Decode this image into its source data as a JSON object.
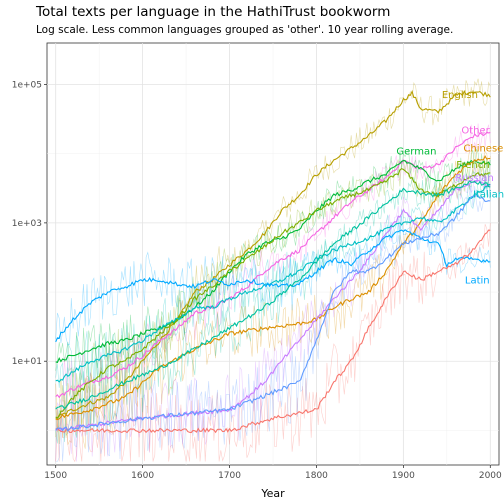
{
  "chart_data": {
    "type": "line",
    "title": "Total texts per language in the HathiTrust bookworm",
    "subtitle": "Log scale. Less common languages grouped as 'other'. 10 year rolling average.",
    "xlabel": "Year",
    "ylabel": "",
    "xlim": [
      1490,
      2010
    ],
    "ylim_log10": [
      -0.5,
      5.6
    ],
    "x_ticks": [
      1500,
      1600,
      1700,
      1800,
      1900,
      2000
    ],
    "y_ticks": [
      {
        "value": 10,
        "label": "1e+01"
      },
      {
        "value": 1000,
        "label": "1e+03"
      },
      {
        "value": 100000,
        "label": "1e+05"
      }
    ],
    "grid": true,
    "series": [
      {
        "name": "English",
        "color": "#b79f00",
        "label_at": [
          1965,
          72000
        ],
        "x": [
          1500,
          1520,
          1540,
          1560,
          1580,
          1600,
          1620,
          1640,
          1660,
          1680,
          1700,
          1720,
          1740,
          1760,
          1780,
          1800,
          1820,
          1840,
          1860,
          1880,
          1900,
          1910,
          1920,
          1940,
          1960,
          1980,
          2000
        ],
        "y": [
          1.5,
          2,
          2.5,
          3,
          5,
          10,
          20,
          40,
          100,
          150,
          250,
          400,
          700,
          1500,
          2500,
          5000,
          8000,
          12000,
          18000,
          30000,
          60000,
          75000,
          45000,
          40000,
          70000,
          80000,
          70000
        ]
      },
      {
        "name": "Other",
        "color": "#f564e3",
        "label_at": [
          1983,
          22000
        ],
        "x": [
          1500,
          1520,
          1540,
          1560,
          1580,
          1600,
          1620,
          1640,
          1660,
          1680,
          1700,
          1720,
          1740,
          1760,
          1780,
          1800,
          1820,
          1840,
          1860,
          1880,
          1900,
          1920,
          1940,
          1960,
          1980,
          2000
        ],
        "y": [
          3,
          4,
          5,
          6,
          8,
          12,
          20,
          30,
          50,
          60,
          80,
          120,
          200,
          300,
          400,
          700,
          1200,
          2000,
          3000,
          4500,
          8000,
          6000,
          7000,
          12000,
          18000,
          20000
        ]
      },
      {
        "name": "German",
        "color": "#00ba38",
        "label_at": [
          1915,
          11000
        ],
        "x": [
          1500,
          1520,
          1540,
          1560,
          1580,
          1600,
          1620,
          1640,
          1660,
          1680,
          1700,
          1720,
          1740,
          1760,
          1780,
          1800,
          1820,
          1840,
          1860,
          1880,
          1900,
          1920,
          1940,
          1960,
          1980,
          2000
        ],
        "y": [
          10,
          12,
          15,
          18,
          20,
          25,
          30,
          40,
          60,
          100,
          200,
          350,
          500,
          600,
          800,
          1500,
          2500,
          3000,
          4000,
          5000,
          8000,
          6000,
          4000,
          6000,
          8000,
          7000
        ]
      },
      {
        "name": "Chinese",
        "color": "#db8e00",
        "label_at": [
          1992,
          12000
        ],
        "x": [
          1500,
          1540,
          1580,
          1620,
          1660,
          1700,
          1740,
          1780,
          1800,
          1820,
          1840,
          1860,
          1880,
          1900,
          1920,
          1940,
          1960,
          1980,
          2000
        ],
        "y": [
          1.5,
          2,
          3,
          8,
          15,
          25,
          30,
          35,
          40,
          60,
          80,
          100,
          200,
          500,
          1000,
          2500,
          5000,
          8000,
          9000
        ]
      },
      {
        "name": "French",
        "color": "#7cae00",
        "label_at": [
          1980,
          7000
        ],
        "x": [
          1500,
          1520,
          1540,
          1560,
          1580,
          1600,
          1620,
          1640,
          1660,
          1680,
          1700,
          1720,
          1740,
          1760,
          1780,
          1800,
          1820,
          1840,
          1860,
          1880,
          1900,
          1920,
          1940,
          1960,
          1980,
          2000
        ],
        "y": [
          1.5,
          3,
          5,
          8,
          10,
          15,
          25,
          40,
          80,
          120,
          200,
          300,
          450,
          700,
          1000,
          1500,
          2000,
          2500,
          3000,
          4000,
          6000,
          3000,
          2500,
          3500,
          5000,
          5000
        ]
      },
      {
        "name": "Russian",
        "color": "#c77cff",
        "label_at": [
          1982,
          4500
        ],
        "x": [
          1500,
          1600,
          1700,
          1720,
          1740,
          1760,
          1780,
          1800,
          1820,
          1840,
          1860,
          1880,
          1900,
          1920,
          1940,
          1960,
          1980,
          2000
        ],
        "y": [
          1,
          1.5,
          2,
          3,
          5,
          10,
          20,
          40,
          80,
          150,
          300,
          700,
          1500,
          800,
          1500,
          3000,
          4000,
          3500
        ]
      },
      {
        "name": "Italian",
        "color": "#00bfc4",
        "label_at": [
          1998,
          2600
        ],
        "x": [
          1500,
          1520,
          1540,
          1560,
          1580,
          1600,
          1620,
          1640,
          1660,
          1680,
          1700,
          1720,
          1740,
          1760,
          1780,
          1800,
          1820,
          1840,
          1860,
          1880,
          1900,
          1920,
          1940,
          1960,
          1980,
          2000
        ],
        "y": [
          5,
          7,
          10,
          12,
          15,
          20,
          30,
          40,
          60,
          60,
          80,
          100,
          120,
          150,
          200,
          300,
          400,
          500,
          600,
          800,
          1000,
          1200,
          1000,
          1500,
          2500,
          3500
        ]
      },
      {
        "name": "Latin",
        "color": "#00a9ff",
        "label_at": [
          1985,
          150
        ],
        "x": [
          1500,
          1520,
          1540,
          1560,
          1580,
          1600,
          1620,
          1640,
          1660,
          1680,
          1700,
          1720,
          1740,
          1760,
          1780,
          1800,
          1820,
          1840,
          1860,
          1880,
          1900,
          1920,
          1940,
          1950,
          1960,
          1980,
          2000
        ],
        "y": [
          20,
          40,
          70,
          100,
          120,
          150,
          150,
          130,
          120,
          150,
          130,
          150,
          130,
          120,
          130,
          200,
          300,
          250,
          400,
          600,
          800,
          600,
          500,
          250,
          300,
          300,
          280
        ]
      },
      {
        "name": "",
        "color": "#f8766d",
        "x": [
          1500,
          1600,
          1700,
          1750,
          1800,
          1820,
          1840,
          1860,
          1880,
          1900,
          1920,
          1940,
          1960,
          1980,
          2000
        ],
        "y": [
          1,
          1,
          1,
          1.5,
          2,
          5,
          10,
          30,
          80,
          200,
          150,
          200,
          250,
          400,
          800
        ]
      },
      {
        "name": "",
        "color": "#619cff",
        "x": [
          1500,
          1600,
          1700,
          1780,
          1800,
          1820,
          1840,
          1860,
          1880,
          1900,
          1920,
          1940,
          1960,
          1980,
          2000
        ],
        "y": [
          1,
          1.5,
          2,
          5,
          20,
          100,
          200,
          200,
          300,
          500,
          600,
          700,
          1200,
          2500,
          2000
        ]
      },
      {
        "name": "",
        "color": "#00c19f",
        "x": [
          1500,
          1540,
          1580,
          1620,
          1660,
          1700,
          1740,
          1780,
          1820,
          1860,
          1900,
          1940,
          1980,
          2000
        ],
        "y": [
          2,
          3,
          5,
          8,
          15,
          30,
          60,
          150,
          500,
          1200,
          3000,
          2500,
          4000,
          3500
        ]
      }
    ]
  }
}
